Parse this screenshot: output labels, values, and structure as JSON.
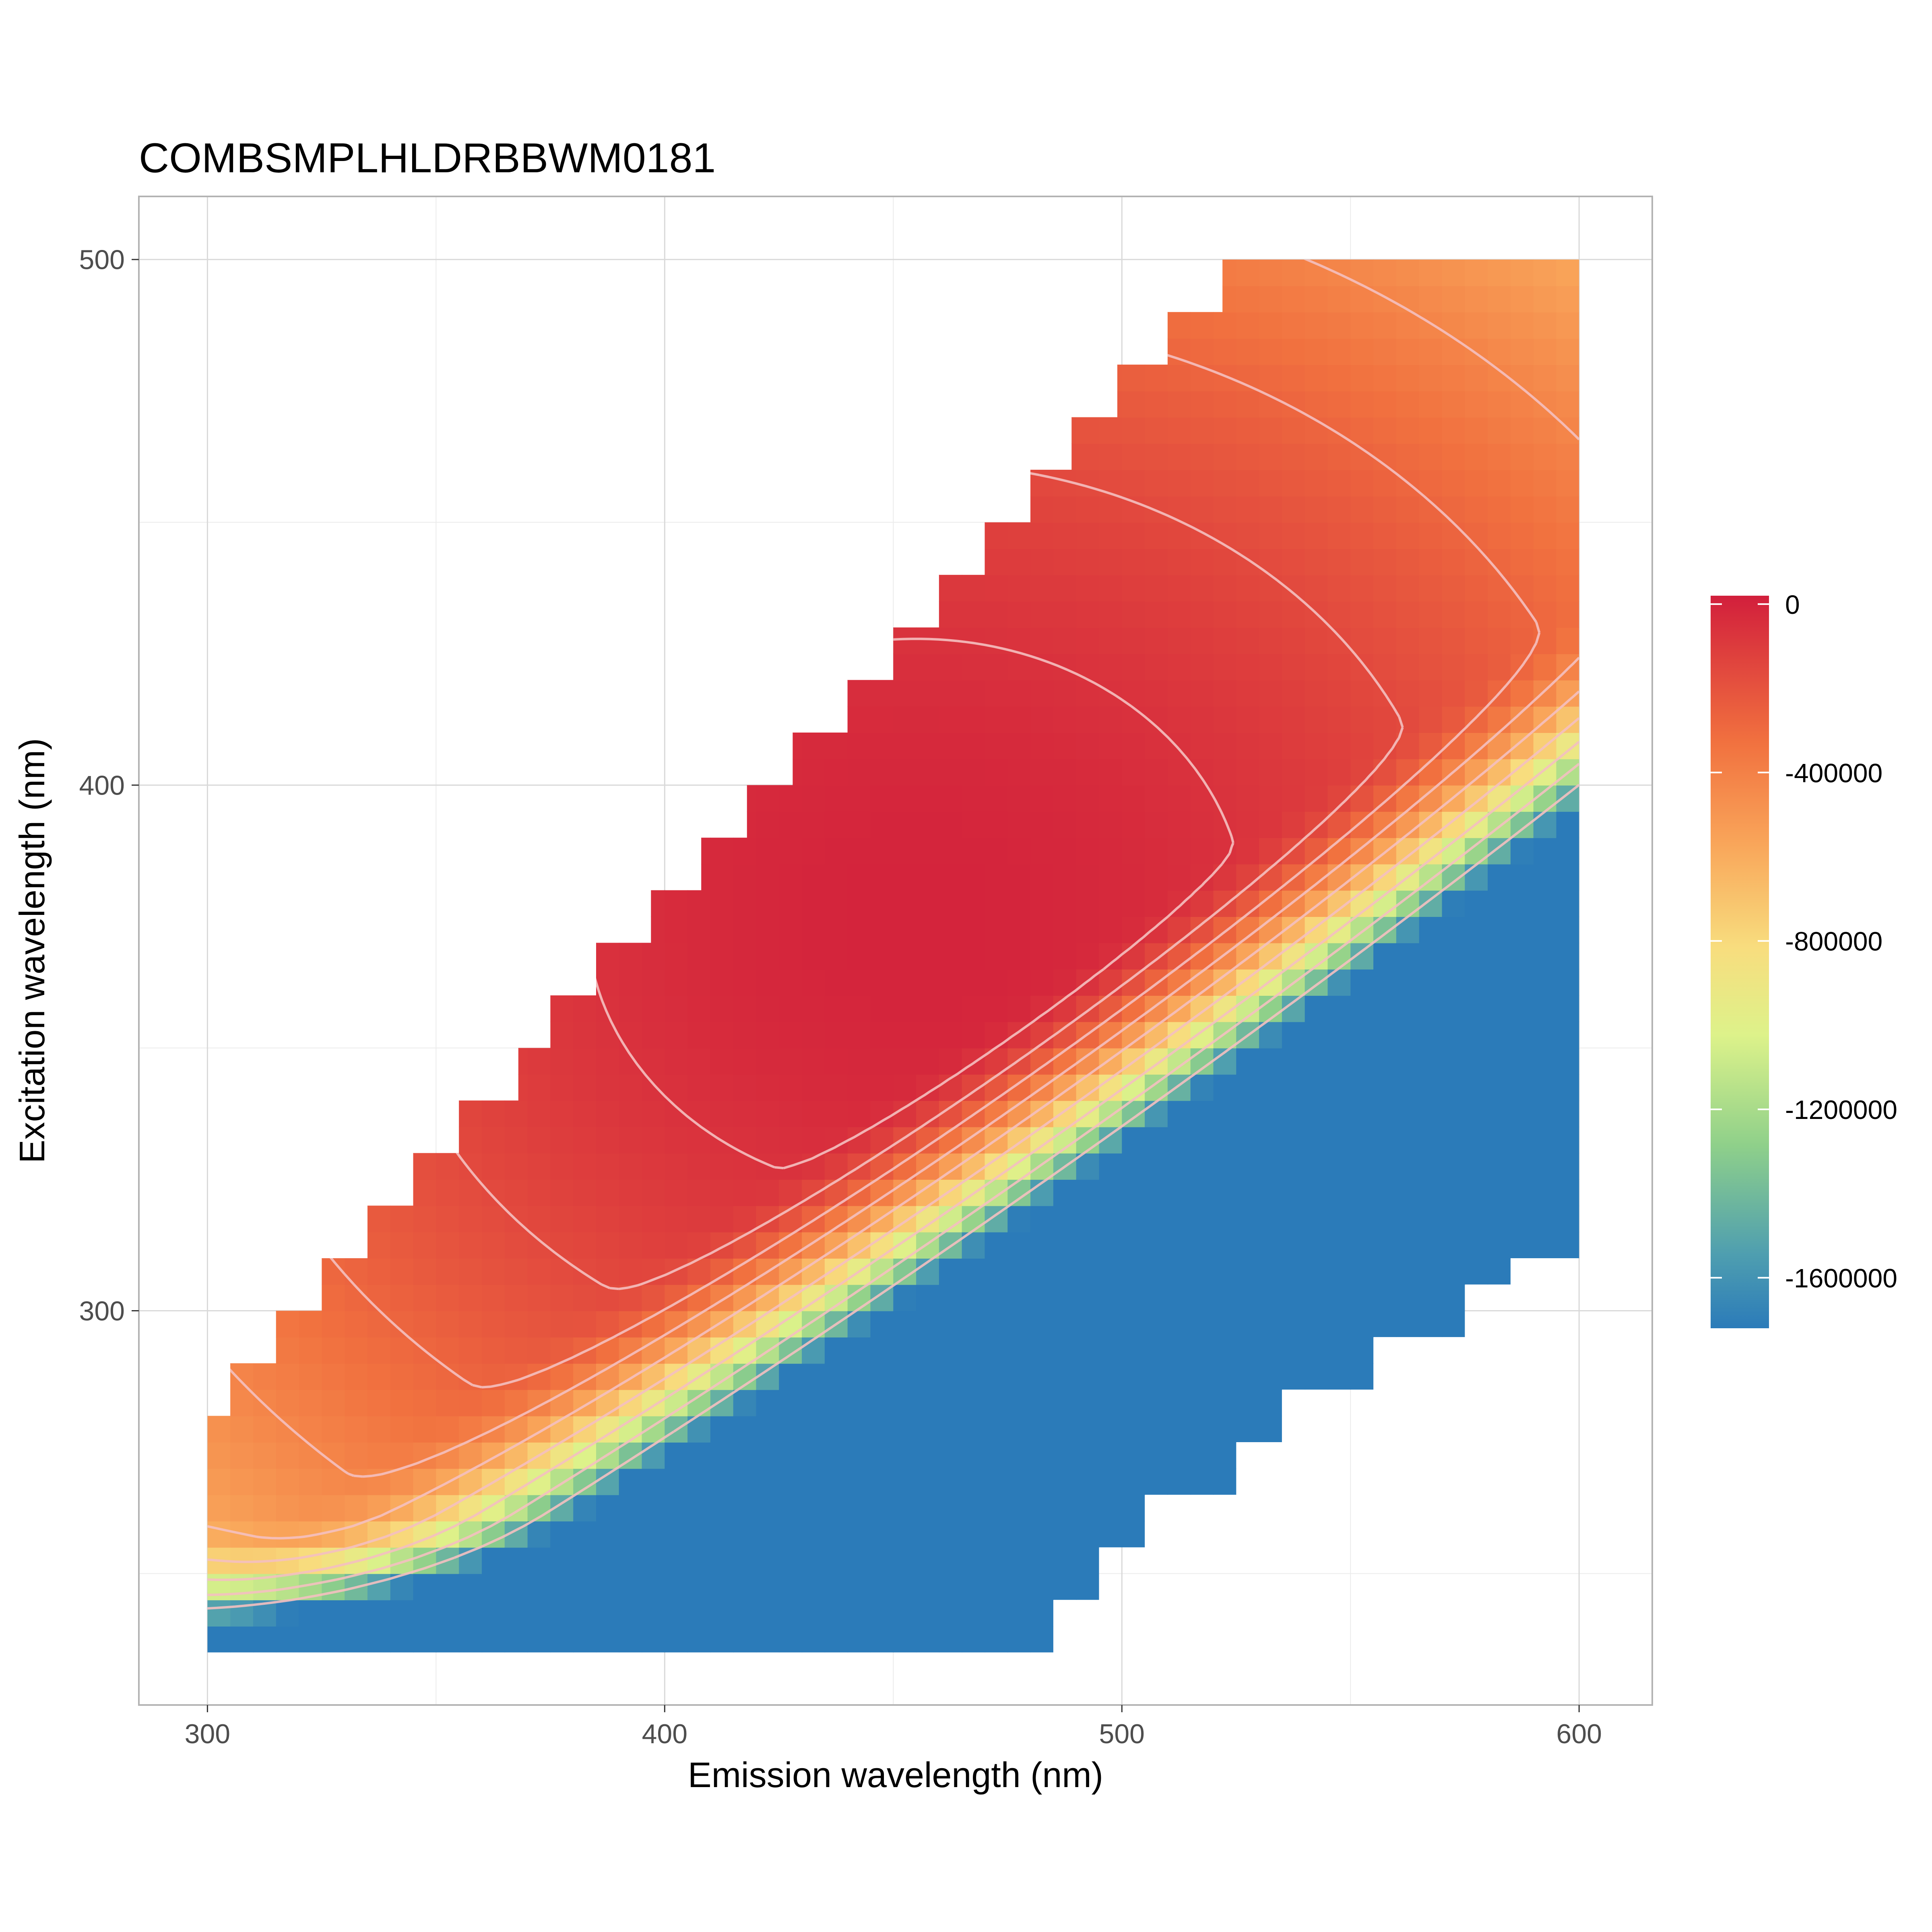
{
  "chart_data": {
    "type": "heatmap",
    "subtype": "filled contour (excitation-emission matrix)",
    "title": "COMBSMPLHLDRBBWM0181",
    "xlabel": "Emission wavelength (nm)",
    "ylabel": "Excitation wavelength (nm)",
    "xlim": [
      285,
      616
    ],
    "ylim": [
      225,
      512
    ],
    "x_ticks": [
      "300",
      "400",
      "500",
      "600"
    ],
    "y_ticks": [
      "300",
      "400",
      "500"
    ],
    "x_minor_gridlines": [
      350,
      450,
      550
    ],
    "y_minor_gridlines": [
      250,
      350,
      450
    ],
    "grid": true,
    "legend_position": "right",
    "colorbar": {
      "range": [
        -1720000,
        20000
      ],
      "tick_labels": [
        "0",
        "-400000",
        "-800000",
        "-1200000",
        "-1600000"
      ],
      "tick_values": [
        0,
        -400000,
        -800000,
        -1200000,
        -1600000
      ],
      "palette": [
        "#2B7BB9",
        "#4E9EB0",
        "#8FD08A",
        "#DDF28A",
        "#F8DD7E",
        "#F9A65A",
        "#F1713F",
        "#D73027"
      ]
    },
    "contour_line_color": "#F4C0C0",
    "data_region": {
      "x_range": [
        300,
        600
      ],
      "y_range": [
        235,
        500
      ],
      "upper_boundary_steps": [
        {
          "ex": 270,
          "em_min": 300
        },
        {
          "ex": 280,
          "em_min": 305
        },
        {
          "ex": 290,
          "em_min": 315
        },
        {
          "ex": 300,
          "em_min": 325
        },
        {
          "ex": 310,
          "em_min": 335
        },
        {
          "ex": 320,
          "em_min": 345
        },
        {
          "ex": 330,
          "em_min": 355
        },
        {
          "ex": 340,
          "em_min": 368
        },
        {
          "ex": 350,
          "em_min": 375
        },
        {
          "ex": 360,
          "em_min": 385
        },
        {
          "ex": 370,
          "em_min": 397
        },
        {
          "ex": 380,
          "em_min": 408
        },
        {
          "ex": 390,
          "em_min": 418
        },
        {
          "ex": 400,
          "em_min": 428
        },
        {
          "ex": 410,
          "em_min": 440
        },
        {
          "ex": 420,
          "em_min": 450
        },
        {
          "ex": 430,
          "em_min": 460
        },
        {
          "ex": 440,
          "em_min": 470
        },
        {
          "ex": 450,
          "em_min": 480
        },
        {
          "ex": 460,
          "em_min": 489
        },
        {
          "ex": 470,
          "em_min": 499
        },
        {
          "ex": 480,
          "em_min": 510
        },
        {
          "ex": 490,
          "em_min": 522
        },
        {
          "ex": 500,
          "em_min": 530
        }
      ],
      "lower_boundary_steps": [
        {
          "em": 465,
          "ex_min": 235
        },
        {
          "em": 485,
          "ex_min": 235
        },
        {
          "em": 495,
          "ex_min": 245
        },
        {
          "em": 505,
          "ex_min": 255
        },
        {
          "em": 515,
          "ex_min": 265
        },
        {
          "em": 525,
          "ex_min": 265
        },
        {
          "em": 535,
          "ex_min": 275
        },
        {
          "em": 555,
          "ex_min": 285
        },
        {
          "em": 575,
          "ex_min": 295
        },
        {
          "em": 585,
          "ex_min": 305
        },
        {
          "em": 600,
          "ex_min": 310
        }
      ]
    },
    "intensity_peak": {
      "em": 455,
      "ex": 375,
      "value": 0
    },
    "intensity_minimum": {
      "em": 330,
      "ex": 236,
      "value": -1700000
    }
  }
}
